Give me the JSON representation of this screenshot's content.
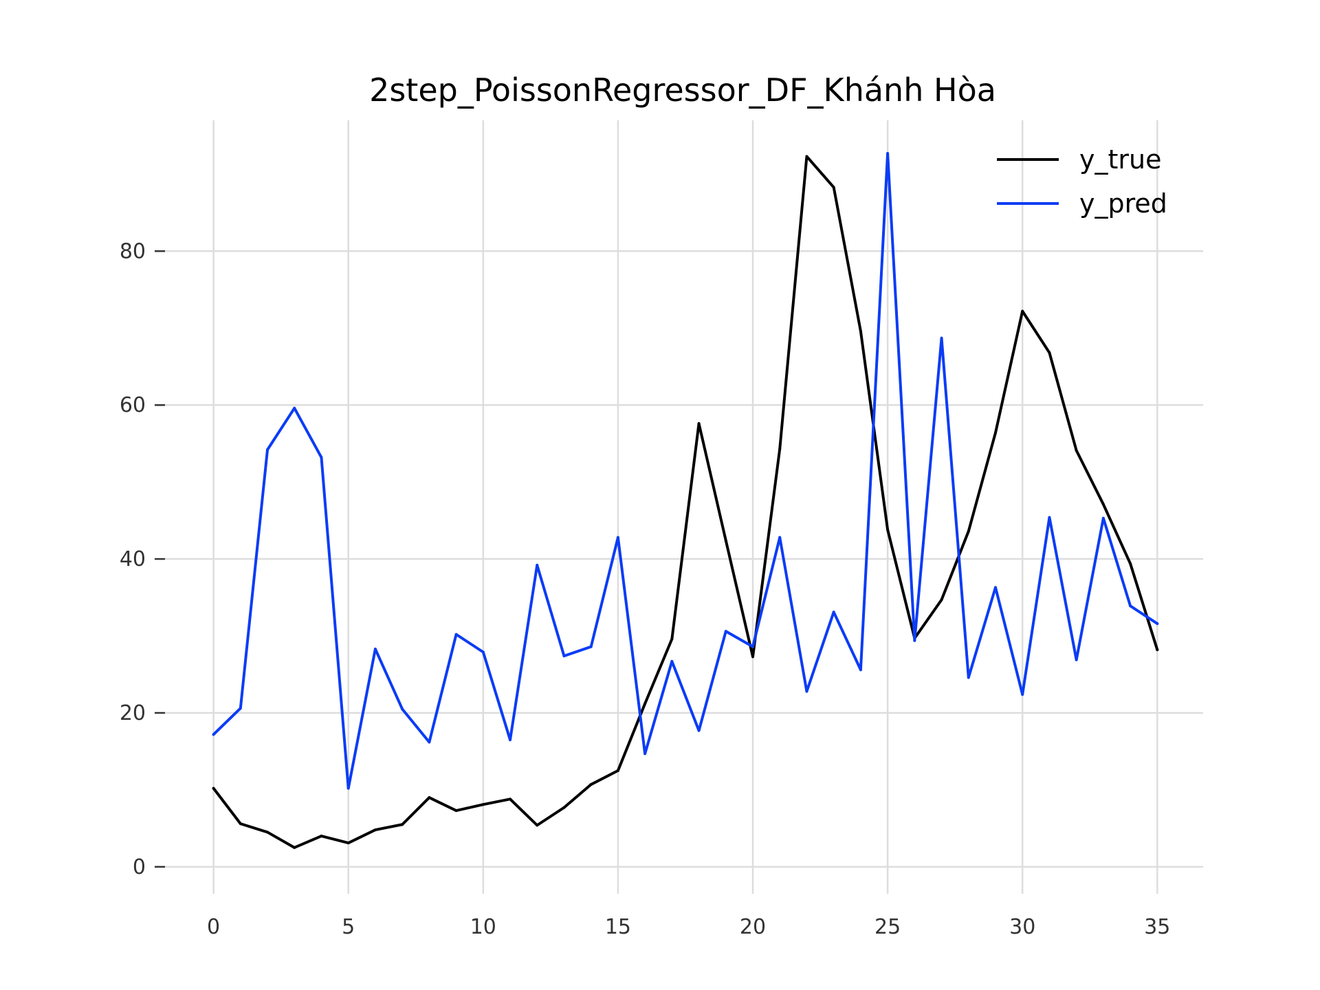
{
  "chart_data": {
    "type": "line",
    "title": "2step_PoissonRegressor_DF_Khánh Hòa",
    "xlabel": "",
    "ylabel": "",
    "xlim": [
      -1.8,
      36.7
    ],
    "ylim": [
      -3.5,
      97
    ],
    "xticks": [
      0,
      5,
      10,
      15,
      20,
      25,
      30,
      35
    ],
    "yticks": [
      0,
      20,
      40,
      60,
      80
    ],
    "grid": true,
    "legend_position": "top-right",
    "x": [
      0,
      1,
      2,
      3,
      4,
      5,
      6,
      7,
      8,
      9,
      10,
      11,
      12,
      13,
      14,
      15,
      16,
      17,
      18,
      19,
      20,
      21,
      22,
      23,
      24,
      25,
      26,
      27,
      28,
      29,
      30,
      31,
      32,
      33,
      34,
      35
    ],
    "series": [
      {
        "name": "y_true",
        "color": "#000000",
        "values": [
          10.2,
          5.6,
          4.5,
          2.5,
          4.0,
          3.1,
          4.8,
          5.5,
          9.0,
          7.3,
          8.1,
          8.8,
          5.4,
          7.7,
          10.7,
          12.5,
          21.2,
          29.6,
          57.6,
          42.4,
          27.3,
          54.3,
          92.3,
          88.3,
          69.6,
          43.8,
          29.7,
          34.7,
          43.6,
          56.4,
          72.2,
          66.8,
          54.1,
          47.1,
          39.4,
          28.2
        ]
      },
      {
        "name": "y_pred",
        "color": "#0b3cf5",
        "values": [
          17.2,
          20.6,
          54.2,
          59.6,
          53.2,
          10.2,
          28.3,
          20.5,
          16.2,
          30.2,
          27.9,
          16.5,
          39.2,
          27.4,
          28.6,
          42.8,
          14.7,
          26.7,
          17.7,
          30.6,
          28.6,
          42.8,
          22.8,
          33.1,
          25.6,
          92.7,
          29.4,
          68.7,
          24.6,
          36.3,
          22.4,
          45.4,
          26.9,
          45.3,
          33.9,
          31.6
        ]
      }
    ]
  }
}
